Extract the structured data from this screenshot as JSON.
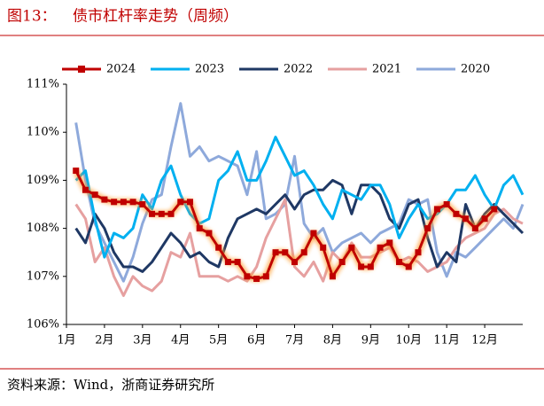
{
  "chart_data": {
    "type": "line",
    "figure_label": "图13：",
    "title": "债市杠杆率走势（周频）",
    "source": "资料来源：Wind，浙商证券研究所",
    "x": [
      1.25,
      1.5,
      1.75,
      2,
      2.25,
      2.5,
      2.75,
      3,
      3.25,
      3.5,
      3.75,
      4,
      4.25,
      4.5,
      4.75,
      5,
      5.25,
      5.5,
      5.75,
      6,
      6.25,
      6.5,
      6.75,
      7,
      7.25,
      7.5,
      7.75,
      8,
      8.25,
      8.5,
      8.75,
      9,
      9.25,
      9.5,
      9.75,
      10,
      10.25,
      10.5,
      10.75,
      11,
      11.25,
      11.5,
      11.75,
      12,
      12.25,
      12.5,
      12.75,
      13
    ],
    "xlim": [
      1,
      13
    ],
    "xticks": [
      {
        "value": 1,
        "label": "1月"
      },
      {
        "value": 2,
        "label": "2月"
      },
      {
        "value": 3,
        "label": "3月"
      },
      {
        "value": 4,
        "label": "4月"
      },
      {
        "value": 5,
        "label": "5月"
      },
      {
        "value": 6,
        "label": "6月"
      },
      {
        "value": 7,
        "label": "7月"
      },
      {
        "value": 8,
        "label": "8月"
      },
      {
        "value": 9,
        "label": "9月"
      },
      {
        "value": 10,
        "label": "10月"
      },
      {
        "value": 11,
        "label": "11月"
      },
      {
        "value": 12,
        "label": "12月"
      }
    ],
    "ylim": [
      106,
      111
    ],
    "yticks": [
      {
        "value": 106,
        "label": "106%"
      },
      {
        "value": 107,
        "label": "107%"
      },
      {
        "value": 108,
        "label": "108%"
      },
      {
        "value": 109,
        "label": "109%"
      },
      {
        "value": 110,
        "label": "110%"
      },
      {
        "value": 111,
        "label": "111%"
      }
    ],
    "series": [
      {
        "name": "2024",
        "color": "#c00000",
        "markers": true,
        "glow": "#ff9933",
        "values": [
          109.2,
          108.8,
          108.7,
          108.6,
          108.55,
          108.55,
          108.55,
          108.5,
          108.3,
          108.3,
          108.3,
          108.55,
          108.55,
          108.0,
          107.9,
          107.6,
          107.3,
          107.3,
          107.0,
          106.95,
          107.0,
          107.5,
          107.5,
          107.3,
          107.5,
          107.9,
          107.6,
          107.0,
          107.3,
          107.6,
          107.2,
          107.2,
          107.6,
          107.7,
          107.3,
          107.2,
          107.5,
          108.0,
          108.4,
          108.5,
          108.3,
          108.2,
          108.0,
          108.2,
          108.4,
          null,
          null,
          null
        ]
      },
      {
        "name": "2023",
        "color": "#00b0f0",
        "values": [
          109.0,
          109.2,
          108.2,
          107.4,
          107.9,
          107.8,
          108.0,
          108.7,
          108.4,
          109.0,
          109.3,
          108.7,
          108.3,
          108.1,
          108.2,
          109.0,
          109.2,
          109.6,
          109.0,
          109.0,
          109.4,
          109.9,
          109.5,
          109.1,
          109.2,
          108.9,
          108.5,
          108.2,
          108.8,
          108.7,
          108.6,
          108.9,
          108.9,
          108.5,
          107.8,
          108.2,
          108.5,
          108.2,
          108.3,
          108.5,
          108.8,
          108.8,
          109.1,
          108.7,
          108.4,
          108.9,
          109.1,
          108.7
        ]
      },
      {
        "name": "2022",
        "color": "#1f3864",
        "values": [
          108.0,
          107.7,
          108.3,
          108.0,
          107.5,
          107.2,
          107.2,
          107.1,
          107.3,
          107.6,
          107.9,
          107.7,
          107.4,
          107.5,
          107.3,
          107.2,
          107.8,
          108.2,
          108.3,
          108.4,
          108.3,
          108.5,
          108.7,
          108.4,
          108.7,
          108.8,
          108.8,
          109.0,
          108.9,
          108.3,
          108.9,
          108.9,
          108.7,
          108.2,
          108.0,
          108.5,
          108.6,
          107.8,
          107.2,
          107.5,
          107.3,
          108.5,
          108.0,
          108.3,
          108.5,
          108.3,
          108.1,
          107.9
        ]
      },
      {
        "name": "2021",
        "color": "#e6a0a0",
        "values": [
          108.5,
          108.2,
          107.3,
          107.6,
          107.0,
          106.6,
          107.0,
          106.8,
          106.7,
          106.9,
          107.5,
          107.4,
          107.9,
          107.0,
          107.0,
          107.0,
          106.9,
          107.0,
          106.9,
          107.2,
          107.8,
          108.2,
          108.6,
          107.2,
          107.0,
          107.3,
          106.9,
          107.5,
          107.3,
          107.7,
          107.4,
          107.4,
          107.5,
          107.6,
          107.3,
          107.4,
          107.3,
          107.1,
          107.2,
          107.3,
          107.6,
          107.8,
          107.9,
          108.0,
          108.3,
          108.4,
          108.2,
          108.1
        ]
      },
      {
        "name": "2020",
        "color": "#8ea9db",
        "values": [
          110.2,
          109.0,
          108.1,
          107.7,
          107.3,
          106.9,
          107.4,
          108.1,
          108.6,
          108.7,
          109.7,
          110.6,
          109.5,
          109.7,
          109.4,
          109.5,
          109.4,
          109.3,
          108.7,
          109.6,
          108.2,
          108.3,
          108.5,
          109.5,
          108.1,
          107.8,
          108.0,
          107.5,
          107.7,
          107.8,
          107.9,
          107.7,
          107.9,
          108.0,
          108.1,
          108.6,
          108.5,
          108.6,
          107.5,
          107.0,
          107.5,
          107.4,
          107.6,
          107.8,
          108.0,
          108.2,
          108.0,
          108.5
        ]
      }
    ]
  }
}
